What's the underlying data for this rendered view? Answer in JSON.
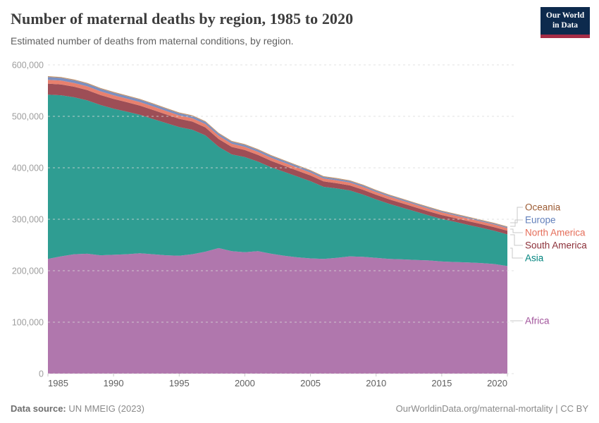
{
  "header": {
    "title": "Number of maternal deaths by region, 1985 to 2020",
    "subtitle": "Estimated number of deaths from maternal conditions, by region.",
    "logo": {
      "line1": "Our World",
      "line2": "in Data",
      "bg_color": "#0d2a4d",
      "accent_color": "#a62d46"
    }
  },
  "chart_data": {
    "type": "area",
    "stacked": true,
    "title": "Number of maternal deaths by region, 1985 to 2020",
    "unit": "deaths",
    "ylim": [
      0,
      600000
    ],
    "grid": true,
    "legend_position": "right",
    "years": [
      1985,
      1986,
      1987,
      1988,
      1989,
      1990,
      1991,
      1992,
      1993,
      1994,
      1995,
      1996,
      1997,
      1998,
      1999,
      2000,
      2001,
      2002,
      2003,
      2004,
      2005,
      2006,
      2007,
      2008,
      2009,
      2010,
      2011,
      2012,
      2013,
      2014,
      2015,
      2016,
      2017,
      2018,
      2019,
      2020
    ],
    "series": [
      {
        "name": "Africa",
        "color": "#b077ad",
        "values": [
          223000,
          228000,
          232000,
          233000,
          230000,
          231000,
          232000,
          234000,
          232000,
          230000,
          229000,
          232000,
          237000,
          244000,
          238000,
          236000,
          238000,
          233000,
          229000,
          226000,
          224000,
          223000,
          225000,
          228000,
          227000,
          225000,
          223000,
          222000,
          221000,
          220000,
          218000,
          217000,
          216000,
          215000,
          213000,
          209000
        ]
      },
      {
        "name": "Asia",
        "color": "#2f9d92",
        "values": [
          319000,
          313000,
          305000,
          298000,
          292000,
          284000,
          277000,
          269000,
          263000,
          257000,
          250000,
          242000,
          226000,
          197000,
          188000,
          185000,
          174000,
          168000,
          163000,
          157000,
          150000,
          140000,
          135000,
          128000,
          121000,
          113500,
          107000,
          100500,
          94000,
          87500,
          82500,
          78000,
          73000,
          68500,
          64500,
          61500
        ]
      },
      {
        "name": "South America",
        "color": "#9d4e56",
        "values": [
          21500,
          21000,
          20500,
          20000,
          19500,
          19000,
          18500,
          18000,
          17500,
          16800,
          16200,
          15800,
          15500,
          15000,
          14500,
          13500,
          13000,
          12500,
          12000,
          11500,
          11000,
          10500,
          10000,
          9700,
          9400,
          9000,
          8700,
          8400,
          8100,
          7900,
          7700,
          7500,
          7400,
          7300,
          7200,
          7200
        ]
      },
      {
        "name": "North America",
        "color": "#e8806e",
        "values": [
          7500,
          7400,
          7300,
          7200,
          7100,
          7000,
          6900,
          6800,
          6700,
          6600,
          6500,
          6500,
          6400,
          6300,
          6200,
          6100,
          6000,
          6000,
          5900,
          5800,
          5700,
          5600,
          5600,
          5500,
          5500,
          5400,
          5400,
          5300,
          5300,
          5200,
          5200,
          5100,
          5100,
          5000,
          5000,
          5000
        ]
      },
      {
        "name": "Europe",
        "color": "#7b8fc0",
        "values": [
          5500,
          5400,
          5200,
          5100,
          5000,
          4900,
          4800,
          4700,
          4600,
          4400,
          4300,
          4300,
          4200,
          4100,
          4000,
          3900,
          3800,
          3700,
          3600,
          3400,
          3300,
          3100,
          3000,
          2900,
          2800,
          2600,
          2500,
          2400,
          2300,
          2200,
          2100,
          2000,
          2000,
          1900,
          1900,
          1800
        ]
      },
      {
        "name": "Oceania",
        "color": "#c39368",
        "values": [
          1600,
          1600,
          1600,
          1600,
          1600,
          1600,
          1500,
          1500,
          1500,
          1500,
          1500,
          1500,
          1500,
          1500,
          1500,
          1500,
          1500,
          1500,
          1500,
          1500,
          1500,
          1500,
          1500,
          1500,
          1500,
          1500,
          1400,
          1400,
          1400,
          1400,
          1400,
          1400,
          1400,
          1400,
          1400,
          1400
        ]
      }
    ],
    "y_ticks": [
      {
        "label": "0",
        "value": 0
      },
      {
        "label": "100,000",
        "value": 100000
      },
      {
        "label": "200,000",
        "value": 200000
      },
      {
        "label": "300,000",
        "value": 300000
      },
      {
        "label": "400,000",
        "value": 400000
      },
      {
        "label": "500,000",
        "value": 500000
      },
      {
        "label": "600,000",
        "value": 600000
      }
    ],
    "x_ticks": [
      1985,
      1990,
      1995,
      2000,
      2005,
      2010,
      2015,
      2020
    ]
  },
  "legend": {
    "items": [
      {
        "label": "Oceania",
        "color": "#9c5b33"
      },
      {
        "label": "Europe",
        "color": "#6380bb"
      },
      {
        "label": "North America",
        "color": "#e56e5a"
      },
      {
        "label": "South America",
        "color": "#8c3039"
      },
      {
        "label": "Asia",
        "color": "#00847e"
      },
      {
        "label": "Africa",
        "color": "#a2559c"
      }
    ]
  },
  "footer": {
    "source_label": "Data source:",
    "source_text": " UN MMEIG (2023)",
    "link_text": "OurWorldinData.org/maternal-mortality",
    "separator": " | ",
    "license": "CC BY"
  }
}
